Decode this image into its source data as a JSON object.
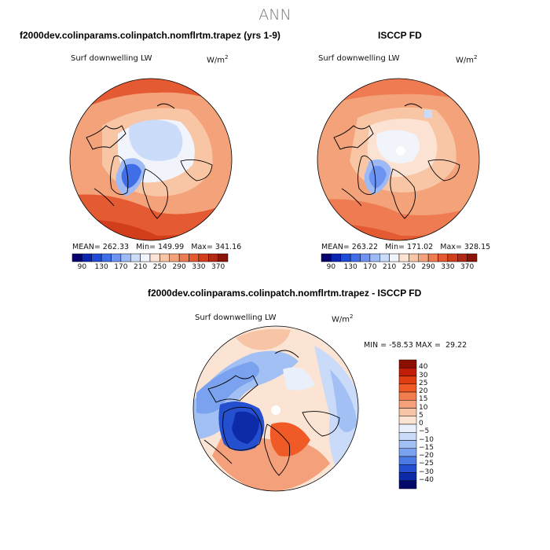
{
  "page_title": "ANN",
  "panels": {
    "model": {
      "title": "f2000dev.colinparams.colinpatch.nomflrtm.trapez (yrs 1-9)",
      "field": "Surf downwelling LW",
      "units_base": "W/m",
      "units_exp": "2",
      "mean_label": "MEAN=",
      "mean": "262.33",
      "min_label": "Min=",
      "min": "149.99",
      "max_label": "Max=",
      "max": "341.16"
    },
    "obs": {
      "title": "ISCCP FD",
      "field": "Surf downwelling LW",
      "units_base": "W/m",
      "units_exp": "2",
      "mean_label": "MEAN=",
      "mean": "263.22",
      "min_label": "Min=",
      "min": "171.02",
      "max_label": "Max=",
      "max": "328.15"
    },
    "diff": {
      "title": "f2000dev.colinparams.colinpatch.nomflrtm.trapez - ISCCP FD",
      "field": "Surf downwelling LW",
      "units_base": "W/m",
      "units_exp": "2",
      "min_label": "MIN =",
      "min": "-58.53",
      "max_label": "MAX =",
      "max": "29.22"
    }
  },
  "colorbars": {
    "absolute": {
      "tick_labels": [
        "90",
        "130",
        "170",
        "210",
        "250",
        "290",
        "330",
        "370"
      ],
      "colors": [
        "#08006e",
        "#0a24b4",
        "#1f4bd6",
        "#3f6ee8",
        "#6c94f0",
        "#9ebaf6",
        "#cbdcfa",
        "#f2f4fb",
        "#fbe2d2",
        "#f8c5a5",
        "#f4a27a",
        "#ee7b52",
        "#e45a33",
        "#d23d1c",
        "#b22812",
        "#8a1408"
      ]
    },
    "diff": {
      "tick_labels": [
        "40",
        "30",
        "25",
        "20",
        "15",
        "10",
        "5",
        "0",
        "−5",
        "−10",
        "−15",
        "−20",
        "−25",
        "−30",
        "−40"
      ],
      "colors": [
        "#8a0f00",
        "#c21e06",
        "#e23d12",
        "#ef5a26",
        "#f27d4e",
        "#f4a07a",
        "#f8c4a6",
        "#fbe4d4",
        "#e9f0fb",
        "#c9dbf8",
        "#a2c0f4",
        "#7aa2ee",
        "#4c7ae4",
        "#2450cf",
        "#0d2aa8",
        "#020a6a"
      ]
    }
  },
  "map_colors": {
    "warm_1": "#f8c5a5",
    "warm_2": "#f4a27a",
    "warm_3": "#ee7b52",
    "warm_4": "#e45a33",
    "cool_1": "#cbdcfa",
    "cool_2": "#6c94f0",
    "cool_3": "#1f4bd6",
    "neutral": "#f2f4fb"
  }
}
